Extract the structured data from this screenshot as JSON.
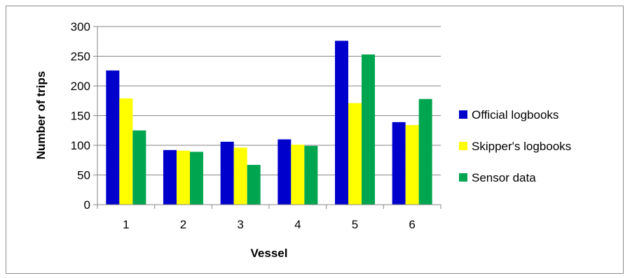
{
  "chart_data": {
    "type": "bar",
    "title": "",
    "xlabel": "Vessel",
    "ylabel": "Number of trips",
    "categories": [
      "1",
      "2",
      "3",
      "4",
      "5",
      "6"
    ],
    "series": [
      {
        "name": "Official logbooks",
        "color": "#0000CC",
        "values": [
          226,
          92,
          106,
          110,
          276,
          139
        ]
      },
      {
        "name": "Skipper's logbooks",
        "color": "#FFFF00",
        "values": [
          179,
          91,
          96,
          101,
          171,
          134
        ]
      },
      {
        "name": "Sensor data",
        "color": "#00A550",
        "values": [
          125,
          89,
          67,
          99,
          253,
          178
        ]
      }
    ],
    "ylim": [
      0,
      300
    ],
    "yticks": [
      "0",
      "50",
      "100",
      "150",
      "200",
      "250",
      "300"
    ],
    "grid": true,
    "legend_position": "right"
  }
}
